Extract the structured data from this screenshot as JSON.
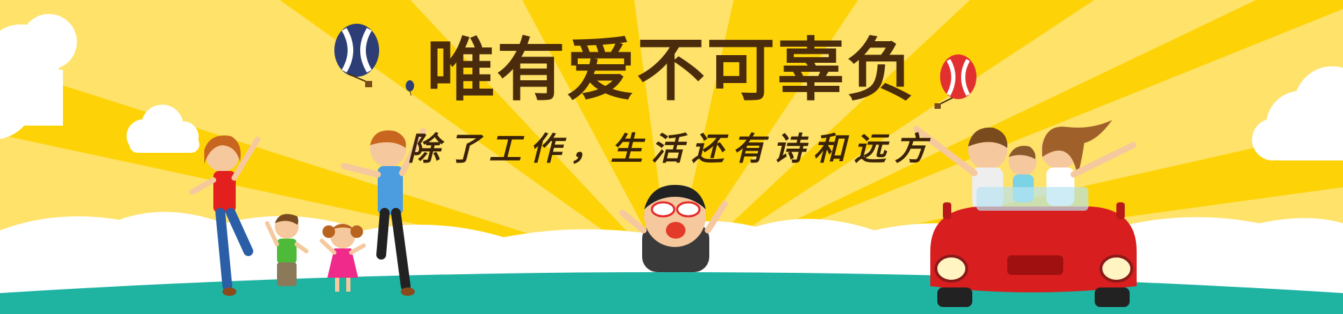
{
  "banner": {
    "headline": "唯有爱不可辜负",
    "subline": "除了工作，生活还有诗和远方"
  },
  "colors": {
    "sky_yellow": "#fdd308",
    "ray_yellow": "#fee26a",
    "ground_teal": "#1fb3a2",
    "car_red": "#d81e1e",
    "headline_brown": "#4a2c0c"
  },
  "icons": [
    "hot-air-balloon-icon",
    "cloud-icon",
    "sun-ray-icon"
  ]
}
